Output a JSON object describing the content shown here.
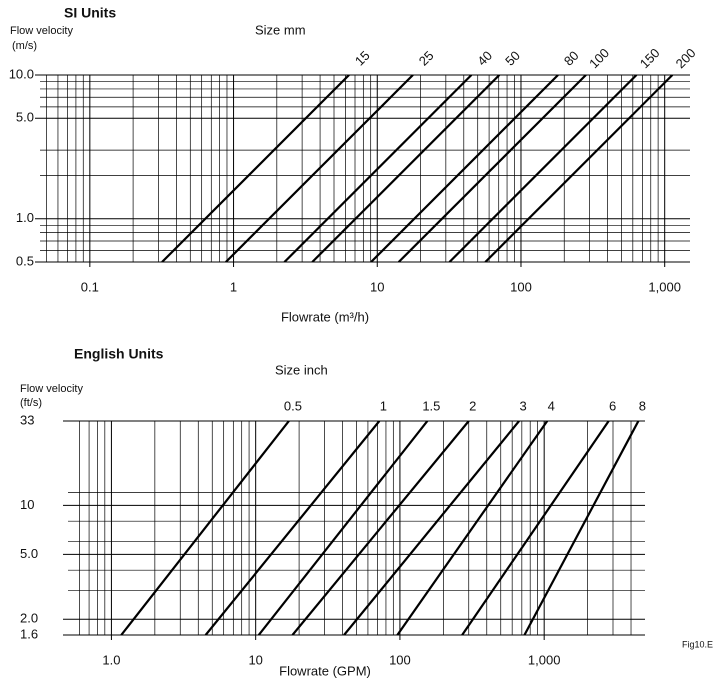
{
  "chart_data": [
    {
      "type": "line",
      "title": "SI Units",
      "y_label": [
        "Flow velocity",
        "(m/s)"
      ],
      "size_label": "Size mm",
      "x_label": "Flowrate (m³/h)",
      "x_log": true,
      "y_log": true,
      "color": "#000000",
      "xlim": [
        0.045,
        1500
      ],
      "ylim": [
        0.5,
        10
      ],
      "xticks": [
        0.1,
        1,
        10,
        100,
        {
          "value": 1000,
          "label": "1,000"
        }
      ],
      "yticks": [
        0.5,
        {
          "value": 1,
          "label": "1.0"
        },
        {
          "value": 5,
          "label": "5.0"
        },
        {
          "value": 10,
          "label": "10.0"
        }
      ],
      "xminorticks": [
        0.05,
        0.06,
        0.07,
        0.08,
        0.09,
        0.2,
        0.3,
        0.4,
        0.5,
        0.6,
        0.7,
        0.8,
        0.9,
        2,
        3,
        4,
        5,
        6,
        7,
        8,
        9,
        20,
        30,
        40,
        50,
        60,
        70,
        80,
        90,
        200,
        300,
        400,
        500,
        600,
        700,
        800,
        900
      ],
      "yminorticks": [
        0.6,
        0.7,
        0.8,
        0.9,
        2,
        3,
        6,
        7,
        8,
        9
      ],
      "series": [
        {
          "name": "15",
          "x": [
            0.318,
            6.36
          ],
          "values": [
            0.5,
            10
          ]
        },
        {
          "name": "25",
          "x": [
            0.884,
            17.7
          ],
          "values": [
            0.5,
            10
          ]
        },
        {
          "name": "40",
          "x": [
            2.26,
            45.2
          ],
          "values": [
            0.5,
            10
          ]
        },
        {
          "name": "50",
          "x": [
            3.53,
            70.7
          ],
          "values": [
            0.5,
            10
          ]
        },
        {
          "name": "80",
          "x": [
            9.05,
            181
          ],
          "values": [
            0.5,
            10
          ]
        },
        {
          "name": "100",
          "x": [
            14.1,
            283
          ],
          "values": [
            0.5,
            10
          ]
        },
        {
          "name": "150",
          "x": [
            31.8,
            636
          ],
          "values": [
            0.5,
            10
          ]
        },
        {
          "name": "200",
          "x": [
            56.5,
            1131
          ],
          "values": [
            0.5,
            10
          ]
        }
      ]
    },
    {
      "type": "line",
      "title": "English Units",
      "y_label": [
        "Flow velocity",
        "(ft/s)"
      ],
      "size_label": "Size  inch",
      "x_label": "Flowrate (GPM)",
      "x_log": true,
      "y_log": true,
      "color": "#000000",
      "xlim": [
        0.5,
        5000
      ],
      "ylim": [
        1.6,
        33
      ],
      "xticks": [
        {
          "value": 1,
          "label": "1.0"
        },
        10,
        100,
        {
          "value": 1000,
          "label": "1,000"
        }
      ],
      "yticks": [
        1.6,
        {
          "value": 2,
          "label": "2.0"
        },
        {
          "value": 5,
          "label": "5.0"
        },
        10,
        33
      ],
      "xminorticks": [
        0.6,
        0.7,
        0.8,
        0.9,
        2,
        3,
        4,
        5,
        6,
        7,
        8,
        9,
        20,
        30,
        40,
        50,
        60,
        70,
        80,
        90,
        200,
        300,
        400,
        500,
        600,
        700,
        800,
        900,
        2000,
        3000,
        4000
      ],
      "yminorticks": [
        3,
        4,
        6,
        8,
        12
      ],
      "series": [
        {
          "name": "0.5",
          "x": [
            1.17,
            17
          ],
          "values": [
            1.6,
            33
          ]
        },
        {
          "name": "1",
          "x": [
            4.5,
            72
          ],
          "values": [
            1.6,
            33
          ]
        },
        {
          "name": "1.5",
          "x": [
            10.5,
            155
          ],
          "values": [
            1.6,
            33
          ]
        },
        {
          "name": "2",
          "x": [
            18,
            300
          ],
          "values": [
            1.6,
            33
          ]
        },
        {
          "name": "3",
          "x": [
            41,
            670
          ],
          "values": [
            1.6,
            33
          ]
        },
        {
          "name": "4",
          "x": [
            96,
            1050
          ],
          "values": [
            1.6,
            33
          ]
        },
        {
          "name": "6",
          "x": [
            270,
            2800
          ],
          "values": [
            1.6,
            33
          ]
        },
        {
          "name": "8",
          "x": [
            730,
            4500
          ],
          "values": [
            1.6,
            33
          ]
        }
      ]
    }
  ],
  "figure_note": "Fig10.E"
}
